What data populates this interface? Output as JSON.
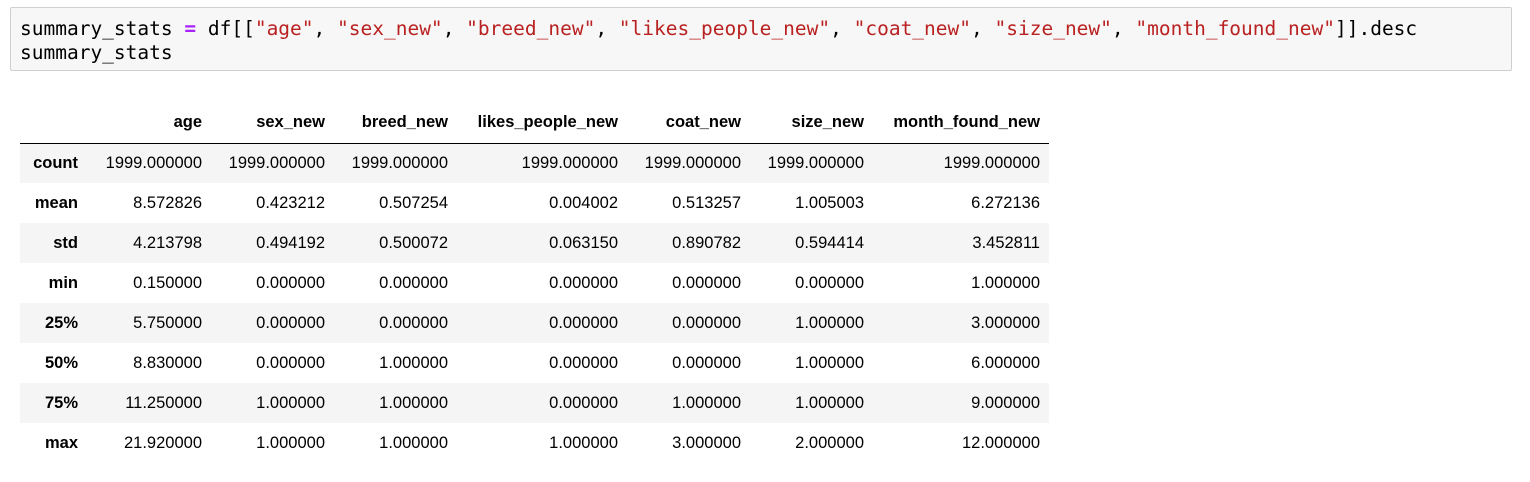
{
  "code": {
    "line1": {
      "var": "summary_stats ",
      "eq": "=",
      "pre": " df[[",
      "cols": [
        "\"age\"",
        "\"sex_new\"",
        "\"breed_new\"",
        "\"likes_people_new\"",
        "\"coat_new\"",
        "\"size_new\"",
        "\"month_found_new\""
      ],
      "sep": ", ",
      "post": "]].desc"
    },
    "line2": "summary_stats"
  },
  "table": {
    "index_header": "",
    "columns": [
      "age",
      "sex_new",
      "breed_new",
      "likes_people_new",
      "coat_new",
      "size_new",
      "month_found_new"
    ],
    "rows": [
      {
        "label": "count",
        "values": [
          "1999.000000",
          "1999.000000",
          "1999.000000",
          "1999.000000",
          "1999.000000",
          "1999.000000",
          "1999.000000"
        ]
      },
      {
        "label": "mean",
        "values": [
          "8.572826",
          "0.423212",
          "0.507254",
          "0.004002",
          "0.513257",
          "1.005003",
          "6.272136"
        ]
      },
      {
        "label": "std",
        "values": [
          "4.213798",
          "0.494192",
          "0.500072",
          "0.063150",
          "0.890782",
          "0.594414",
          "3.452811"
        ]
      },
      {
        "label": "min",
        "values": [
          "0.150000",
          "0.000000",
          "0.000000",
          "0.000000",
          "0.000000",
          "0.000000",
          "1.000000"
        ]
      },
      {
        "label": "25%",
        "values": [
          "5.750000",
          "0.000000",
          "0.000000",
          "0.000000",
          "0.000000",
          "1.000000",
          "3.000000"
        ]
      },
      {
        "label": "50%",
        "values": [
          "8.830000",
          "0.000000",
          "1.000000",
          "0.000000",
          "0.000000",
          "1.000000",
          "6.000000"
        ]
      },
      {
        "label": "75%",
        "values": [
          "11.250000",
          "1.000000",
          "1.000000",
          "0.000000",
          "1.000000",
          "1.000000",
          "9.000000"
        ]
      },
      {
        "label": "max",
        "values": [
          "21.920000",
          "1.000000",
          "1.000000",
          "1.000000",
          "3.000000",
          "2.000000",
          "12.000000"
        ]
      }
    ]
  },
  "colors": {
    "code_bg": "#f7f7f7",
    "string": "#ba2121",
    "operator": "#aa22ff",
    "stripe": "#f5f5f5"
  }
}
